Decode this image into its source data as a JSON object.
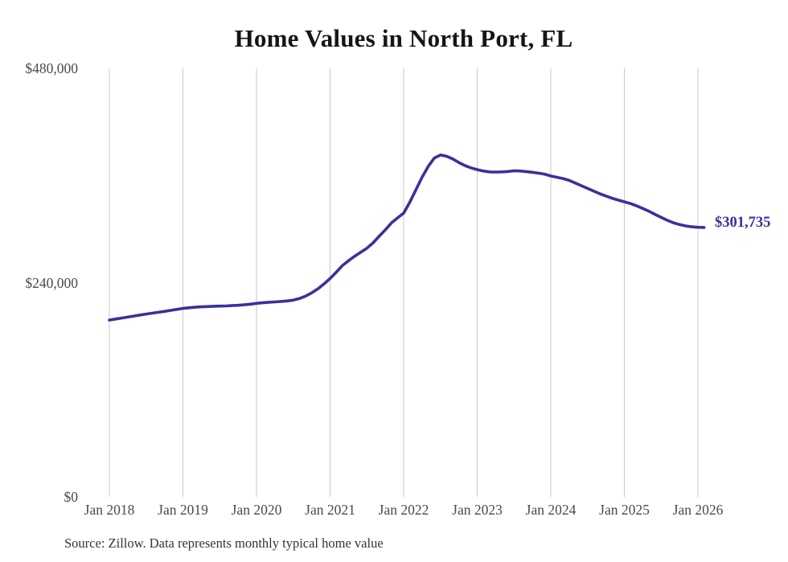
{
  "title": "Home Values in North Port, FL",
  "source_note": "Source: Zillow. Data represents monthly typical home value",
  "colors": {
    "line": "#37329b",
    "annotation_text": "#37329b",
    "grid": "#c9c9c9",
    "tick_text": "#4a4a4a",
    "title_text": "#151515",
    "source_text": "#333333",
    "background": "#ffffff"
  },
  "chart_data": {
    "type": "line",
    "title": "Home Values in North Port, FL",
    "xlabel": "",
    "ylabel": "",
    "frequency": "monthly",
    "x_start": "Jan 2018",
    "x_end": "Feb 2026",
    "ylim": [
      0,
      480000
    ],
    "grid": "vertical-only",
    "legend": false,
    "yticks": [
      {
        "value": 0,
        "label": "$0"
      },
      {
        "value": 240000,
        "label": "$240,000"
      },
      {
        "value": 480000,
        "label": "$480,000"
      }
    ],
    "xticks": [
      {
        "label": "Jan 2018",
        "month_index": 0
      },
      {
        "label": "Jan 2019",
        "month_index": 12
      },
      {
        "label": "Jan 2020",
        "month_index": 24
      },
      {
        "label": "Jan 2021",
        "month_index": 36
      },
      {
        "label": "Jan 2022",
        "month_index": 48
      },
      {
        "label": "Jan 2023",
        "month_index": 60
      },
      {
        "label": "Jan 2024",
        "month_index": 72
      },
      {
        "label": "Jan 2025",
        "month_index": 84
      },
      {
        "label": "Jan 2026",
        "month_index": 96
      }
    ],
    "final_value_label": "$301,735",
    "final_value": 301735,
    "series": [
      {
        "name": "Typical home value",
        "values": [
          198000,
          199200,
          200300,
          201400,
          202500,
          203700,
          204800,
          205800,
          206800,
          207800,
          208900,
          210000,
          211100,
          211800,
          212400,
          212900,
          213200,
          213500,
          213700,
          213900,
          214200,
          214600,
          215100,
          215900,
          216800,
          217400,
          218000,
          218400,
          218900,
          219500,
          220400,
          222200,
          224900,
          228500,
          233000,
          238500,
          244600,
          251500,
          259000,
          264500,
          269500,
          274000,
          278500,
          284500,
          291900,
          299000,
          306800,
          312500,
          317800,
          330000,
          344000,
          358000,
          370000,
          379500,
          383000,
          381500,
          378500,
          374500,
          371000,
          368500,
          366500,
          365000,
          364000,
          363800,
          364000,
          364500,
          365300,
          365000,
          364400,
          363600,
          362600,
          361500,
          359400,
          358000,
          356500,
          354500,
          351500,
          348500,
          345500,
          342500,
          339500,
          337000,
          334500,
          332400,
          330500,
          328500,
          326000,
          323000,
          320000,
          316500,
          313000,
          309800,
          307000,
          305000,
          303500,
          302500,
          302000,
          301735
        ]
      }
    ]
  }
}
